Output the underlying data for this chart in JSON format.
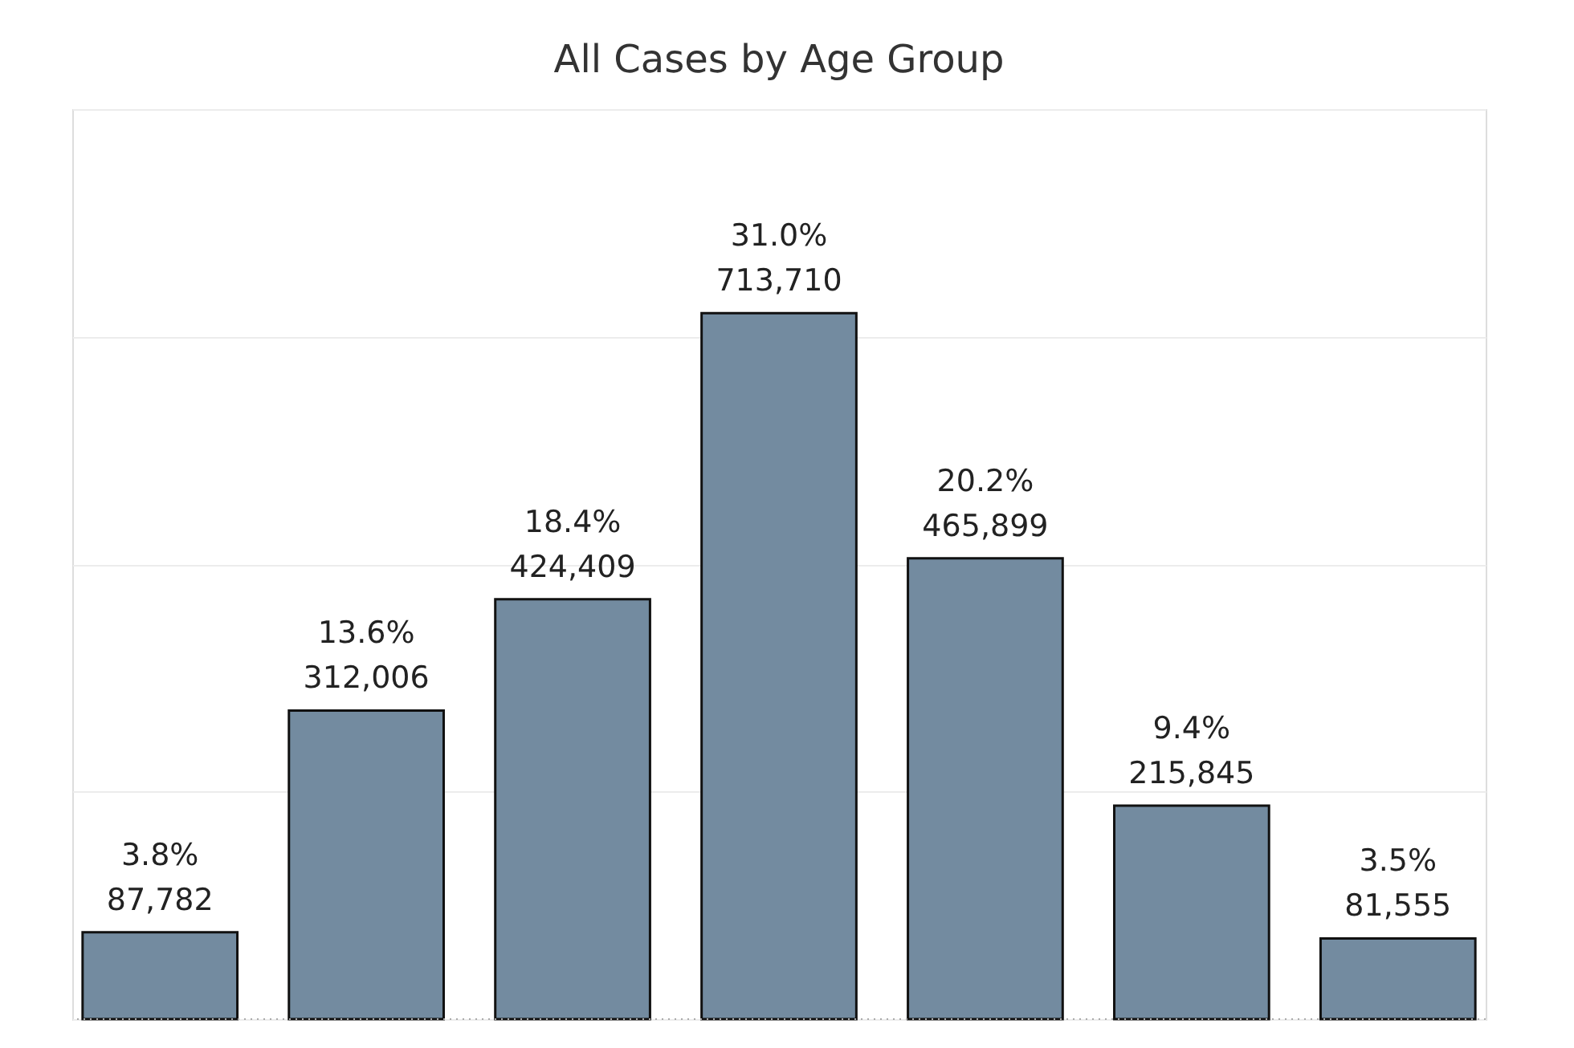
{
  "chart_data": {
    "type": "bar",
    "title": "All Cases by Age Group",
    "categories": [
      null,
      null,
      null,
      null,
      null,
      null,
      null
    ],
    "values": [
      87782,
      312006,
      424409,
      713710,
      465899,
      215845,
      81555
    ],
    "value_labels": [
      "3.8%\n87,782",
      "13.6%\n312,006",
      "18.4%\n424,409",
      "31.0%\n713,710",
      "20.2%\n465,899",
      "9.4%\n215,845",
      "3.5%\n81,555"
    ],
    "color": "#738ba0",
    "ylim": [
      0,
      920000
    ],
    "yticks": [
      {
        "value": 0,
        "label": null
      },
      {
        "value": 230000,
        "label": null
      },
      {
        "value": 460000,
        "label": null
      },
      {
        "value": 690000,
        "label": null
      },
      {
        "value": 920000,
        "label": null
      }
    ],
    "grid": "y",
    "tick_labels": false
  }
}
